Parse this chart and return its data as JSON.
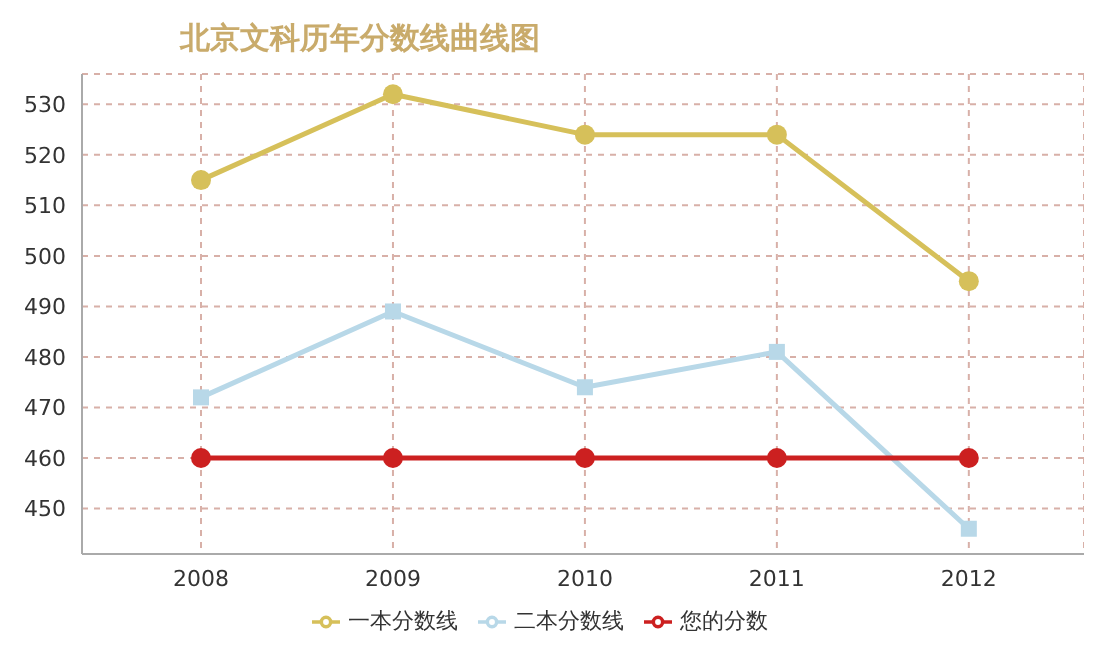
{
  "chart_data": {
    "type": "line",
    "title": "北京文科历年分数线曲线图",
    "categories": [
      "2008",
      "2009",
      "2010",
      "2011",
      "2012"
    ],
    "series": [
      {
        "name": "一本分数线",
        "color": "#d6c05a",
        "marker": "circle",
        "values": [
          515,
          532,
          524,
          524,
          495
        ]
      },
      {
        "name": "二本分数线",
        "color": "#b8d8e8",
        "marker": "square",
        "values": [
          472,
          489,
          474,
          481,
          446
        ]
      },
      {
        "name": "您的分数",
        "color": "#cc2020",
        "marker": "circle",
        "values": [
          460,
          460,
          460,
          460,
          460
        ]
      }
    ],
    "ylim": [
      441,
      536
    ],
    "yticks": [
      450,
      460,
      470,
      480,
      490,
      500,
      510,
      520,
      530
    ],
    "grid": true,
    "legend": "bottom"
  }
}
